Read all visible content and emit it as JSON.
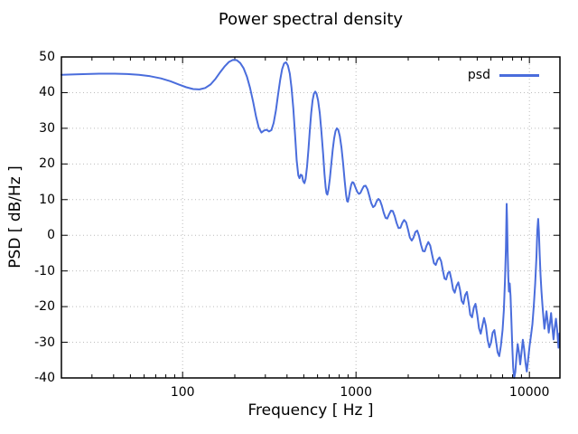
{
  "title": "Power spectral density",
  "legend": {
    "label": "psd"
  },
  "colors": {
    "line": "#4a6ddc",
    "grid": "#bcbcbc",
    "axis": "#000000",
    "background": "#ffffff"
  },
  "chart_data": {
    "type": "line",
    "title": "Power spectral density",
    "xlabel": "Frequency [ Hz ]",
    "ylabel": "PSD [ dB/Hz ]",
    "x_scale": "log",
    "xlim": [
      20,
      15000
    ],
    "ylim": [
      -40,
      50
    ],
    "xticks": [
      100,
      1000,
      10000
    ],
    "yticks": [
      50,
      40,
      30,
      20,
      10,
      0,
      -10,
      -20,
      -30,
      -40
    ],
    "grid": true,
    "legend_position": "top-right-inside",
    "series": [
      {
        "name": "psd",
        "color": "#4a6ddc",
        "points": [
          [
            20,
            45.0
          ],
          [
            24,
            45.1
          ],
          [
            28,
            45.2
          ],
          [
            33,
            45.3
          ],
          [
            40,
            45.3
          ],
          [
            48,
            45.2
          ],
          [
            56,
            45.0
          ],
          [
            65,
            44.6
          ],
          [
            75,
            44.0
          ],
          [
            85,
            43.2
          ],
          [
            95,
            42.3
          ],
          [
            105,
            41.5
          ],
          [
            115,
            41.0
          ],
          [
            125,
            40.9
          ],
          [
            135,
            41.3
          ],
          [
            145,
            42.3
          ],
          [
            155,
            43.9
          ],
          [
            165,
            45.8
          ],
          [
            175,
            47.4
          ],
          [
            185,
            48.6
          ],
          [
            195,
            49.2
          ],
          [
            205,
            49.1
          ],
          [
            215,
            48.3
          ],
          [
            225,
            46.8
          ],
          [
            235,
            44.5
          ],
          [
            245,
            41.3
          ],
          [
            255,
            37.4
          ],
          [
            265,
            33.3
          ],
          [
            275,
            30.2
          ],
          [
            285,
            28.8
          ],
          [
            295,
            29.4
          ],
          [
            305,
            29.6
          ],
          [
            315,
            29.1
          ],
          [
            325,
            29.5
          ],
          [
            335,
            31.5
          ],
          [
            345,
            35.0
          ],
          [
            355,
            39.3
          ],
          [
            365,
            43.5
          ],
          [
            375,
            46.6
          ],
          [
            385,
            48.2
          ],
          [
            395,
            48.5
          ],
          [
            405,
            47.6
          ],
          [
            415,
            45.3
          ],
          [
            425,
            41.3
          ],
          [
            435,
            35.5
          ],
          [
            445,
            28.2
          ],
          [
            455,
            21.0
          ],
          [
            465,
            16.8
          ],
          [
            472,
            16.0
          ],
          [
            480,
            17.0
          ],
          [
            488,
            16.8
          ],
          [
            496,
            15.2
          ],
          [
            504,
            14.6
          ],
          [
            512,
            15.8
          ],
          [
            522,
            19.3
          ],
          [
            532,
            24.3
          ],
          [
            542,
            29.6
          ],
          [
            552,
            34.3
          ],
          [
            562,
            37.8
          ],
          [
            572,
            39.7
          ],
          [
            582,
            40.3
          ],
          [
            592,
            39.7
          ],
          [
            604,
            37.8
          ],
          [
            618,
            34.2
          ],
          [
            632,
            29.0
          ],
          [
            646,
            22.8
          ],
          [
            658,
            17.2
          ],
          [
            668,
            13.4
          ],
          [
            676,
            11.8
          ],
          [
            684,
            11.4
          ],
          [
            694,
            12.8
          ],
          [
            706,
            15.8
          ],
          [
            720,
            19.9
          ],
          [
            734,
            24.0
          ],
          [
            748,
            27.2
          ],
          [
            762,
            29.2
          ],
          [
            776,
            30.0
          ],
          [
            790,
            29.6
          ],
          [
            806,
            27.9
          ],
          [
            824,
            24.6
          ],
          [
            842,
            20.2
          ],
          [
            860,
            15.4
          ],
          [
            876,
            11.4
          ],
          [
            888,
            9.6
          ],
          [
            898,
            9.4
          ],
          [
            910,
            10.6
          ],
          [
            924,
            12.6
          ],
          [
            938,
            14.2
          ],
          [
            952,
            14.9
          ],
          [
            966,
            14.8
          ],
          [
            982,
            14.0
          ],
          [
            1000,
            13.0
          ],
          [
            1020,
            12.1
          ],
          [
            1040,
            11.6
          ],
          [
            1060,
            11.9
          ],
          [
            1085,
            12.9
          ],
          [
            1110,
            13.8
          ],
          [
            1135,
            13.9
          ],
          [
            1165,
            12.9
          ],
          [
            1195,
            11.0
          ],
          [
            1225,
            9.0
          ],
          [
            1255,
            7.9
          ],
          [
            1285,
            8.3
          ],
          [
            1315,
            9.5
          ],
          [
            1345,
            10.2
          ],
          [
            1375,
            9.8
          ],
          [
            1410,
            8.3
          ],
          [
            1445,
            6.3
          ],
          [
            1480,
            4.9
          ],
          [
            1515,
            4.7
          ],
          [
            1550,
            5.8
          ],
          [
            1590,
            6.9
          ],
          [
            1630,
            6.8
          ],
          [
            1670,
            5.4
          ],
          [
            1715,
            3.4
          ],
          [
            1760,
            2.0
          ],
          [
            1805,
            2.1
          ],
          [
            1850,
            3.5
          ],
          [
            1895,
            4.3
          ],
          [
            1945,
            3.6
          ],
          [
            1995,
            1.6
          ],
          [
            2045,
            -0.6
          ],
          [
            2095,
            -1.5
          ],
          [
            2145,
            -0.7
          ],
          [
            2200,
            0.9
          ],
          [
            2255,
            1.3
          ],
          [
            2310,
            -0.2
          ],
          [
            2370,
            -2.6
          ],
          [
            2430,
            -4.4
          ],
          [
            2490,
            -4.5
          ],
          [
            2550,
            -3.0
          ],
          [
            2615,
            -1.9
          ],
          [
            2680,
            -2.9
          ],
          [
            2745,
            -5.4
          ],
          [
            2815,
            -7.8
          ],
          [
            2885,
            -8.3
          ],
          [
            2955,
            -6.9
          ],
          [
            3030,
            -6.2
          ],
          [
            3100,
            -7.3
          ],
          [
            3170,
            -9.9
          ],
          [
            3240,
            -12.1
          ],
          [
            3310,
            -12.4
          ],
          [
            3390,
            -10.6
          ],
          [
            3470,
            -10.2
          ],
          [
            3550,
            -12.4
          ],
          [
            3630,
            -15.2
          ],
          [
            3710,
            -16.1
          ],
          [
            3800,
            -14.2
          ],
          [
            3890,
            -13.2
          ],
          [
            3980,
            -15.3
          ],
          [
            4070,
            -18.4
          ],
          [
            4160,
            -19.2
          ],
          [
            4260,
            -16.8
          ],
          [
            4360,
            -15.9
          ],
          [
            4460,
            -18.9
          ],
          [
            4560,
            -22.3
          ],
          [
            4670,
            -23.0
          ],
          [
            4780,
            -20.3
          ],
          [
            4890,
            -19.2
          ],
          [
            5000,
            -22.2
          ],
          [
            5120,
            -26.1
          ],
          [
            5240,
            -27.6
          ],
          [
            5360,
            -25.3
          ],
          [
            5480,
            -23.2
          ],
          [
            5610,
            -25.4
          ],
          [
            5740,
            -29.3
          ],
          [
            5870,
            -31.4
          ],
          [
            6000,
            -30.2
          ],
          [
            6140,
            -27.3
          ],
          [
            6280,
            -26.6
          ],
          [
            6420,
            -29.6
          ],
          [
            6560,
            -32.8
          ],
          [
            6700,
            -33.9
          ],
          [
            6850,
            -31.0
          ],
          [
            7000,
            -26.5
          ],
          [
            7120,
            -21.0
          ],
          [
            7230,
            -13.0
          ],
          [
            7320,
            -3.5
          ],
          [
            7390,
            8.8
          ],
          [
            7440,
            4.0
          ],
          [
            7490,
            -4.5
          ],
          [
            7550,
            -11.5
          ],
          [
            7620,
            -15.8
          ],
          [
            7700,
            -13.5
          ],
          [
            7780,
            -17.0
          ],
          [
            7870,
            -23.5
          ],
          [
            7960,
            -31.0
          ],
          [
            8060,
            -37.0
          ],
          [
            8170,
            -40.0
          ],
          [
            8290,
            -38.3
          ],
          [
            8420,
            -34.0
          ],
          [
            8560,
            -30.5
          ],
          [
            8700,
            -32.8
          ],
          [
            8850,
            -36.2
          ],
          [
            9000,
            -33.0
          ],
          [
            9160,
            -29.3
          ],
          [
            9320,
            -31.8
          ],
          [
            9490,
            -35.6
          ],
          [
            9660,
            -38.2
          ],
          [
            9840,
            -34.8
          ],
          [
            10020,
            -31.0
          ],
          [
            10210,
            -28.2
          ],
          [
            10400,
            -25.0
          ],
          [
            10600,
            -20.0
          ],
          [
            10800,
            -13.5
          ],
          [
            10980,
            -6.0
          ],
          [
            11120,
            1.5
          ],
          [
            11230,
            4.6
          ],
          [
            11340,
            1.0
          ],
          [
            11460,
            -5.5
          ],
          [
            11590,
            -11.0
          ],
          [
            11730,
            -15.5
          ],
          [
            11880,
            -19.5
          ],
          [
            12040,
            -23.0
          ],
          [
            12200,
            -26.2
          ],
          [
            12370,
            -24.0
          ],
          [
            12550,
            -21.3
          ],
          [
            12740,
            -24.2
          ],
          [
            12930,
            -27.3
          ],
          [
            13130,
            -24.8
          ],
          [
            13340,
            -21.8
          ],
          [
            13550,
            -25.6
          ],
          [
            13770,
            -29.2
          ],
          [
            14000,
            -26.0
          ],
          [
            14230,
            -23.4
          ],
          [
            14470,
            -26.8
          ],
          [
            14710,
            -31.5
          ],
          [
            14900,
            -27.5
          ]
        ]
      }
    ]
  }
}
